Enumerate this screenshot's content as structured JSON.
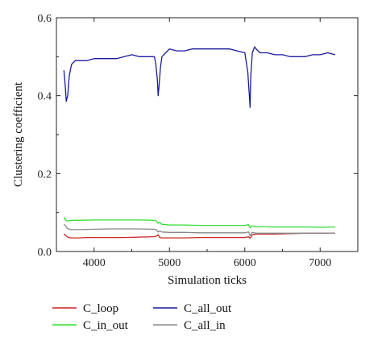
{
  "chart_data": {
    "type": "line",
    "title": "",
    "xlabel": "Simulation ticks",
    "ylabel": "Clustering coefficient",
    "xlim": [
      3500,
      7500
    ],
    "ylim": [
      0,
      0.6
    ],
    "x_ticks": [
      4000,
      5000,
      6000,
      7000
    ],
    "y_ticks": [
      0,
      0.2,
      0.4,
      0.6
    ],
    "x_tick_labels": [
      "4000",
      "5000",
      "6000",
      "7000"
    ],
    "y_tick_labels": [
      "0.0",
      "0.2",
      "0.4",
      "0.6"
    ],
    "grid": false,
    "legend_position": "bottom",
    "series": [
      {
        "name": "C_loop",
        "color": "#cc2222",
        "x": [
          3600,
          3620,
          3640,
          3660,
          3700,
          3800,
          3900,
          4000,
          4200,
          4400,
          4600,
          4800,
          4830,
          4850,
          4870,
          4900,
          5000,
          5200,
          5400,
          5600,
          5800,
          6000,
          6050,
          6070,
          6100,
          6150,
          6200,
          6400,
          6600,
          6800,
          7000,
          7200
        ],
        "y": [
          0.045,
          0.042,
          0.038,
          0.036,
          0.035,
          0.035,
          0.036,
          0.036,
          0.036,
          0.036,
          0.037,
          0.038,
          0.04,
          0.043,
          0.036,
          0.035,
          0.035,
          0.035,
          0.036,
          0.036,
          0.036,
          0.036,
          0.038,
          0.034,
          0.043,
          0.045,
          0.045,
          0.045,
          0.046,
          0.047,
          0.047,
          0.047
        ]
      },
      {
        "name": "C_in_out",
        "color": "#33dd33",
        "x": [
          3600,
          3620,
          3640,
          3660,
          3700,
          3800,
          4000,
          4200,
          4400,
          4600,
          4800,
          4830,
          4850,
          4870,
          4900,
          5000,
          5200,
          5400,
          5600,
          5800,
          6000,
          6050,
          6070,
          6100,
          6150,
          6200,
          6400,
          6600,
          6800,
          7000,
          7200
        ],
        "y": [
          0.088,
          0.082,
          0.078,
          0.079,
          0.08,
          0.08,
          0.081,
          0.081,
          0.081,
          0.081,
          0.08,
          0.078,
          0.072,
          0.075,
          0.07,
          0.068,
          0.068,
          0.067,
          0.067,
          0.067,
          0.067,
          0.069,
          0.061,
          0.066,
          0.063,
          0.064,
          0.063,
          0.063,
          0.063,
          0.062,
          0.063
        ]
      },
      {
        "name": "C_all_out",
        "color": "#1a1a9e",
        "x": [
          3600,
          3615,
          3630,
          3650,
          3670,
          3700,
          3750,
          3800,
          3900,
          4000,
          4100,
          4200,
          4300,
          4400,
          4500,
          4600,
          4700,
          4800,
          4820,
          4840,
          4850,
          4860,
          4880,
          4900,
          4950,
          5000,
          5100,
          5200,
          5300,
          5400,
          5500,
          5600,
          5700,
          5800,
          5900,
          6000,
          6040,
          6060,
          6070,
          6080,
          6100,
          6130,
          6150,
          6200,
          6300,
          6400,
          6500,
          6600,
          6700,
          6800,
          6900,
          7000,
          7100,
          7200
        ],
        "y": [
          0.465,
          0.43,
          0.385,
          0.4,
          0.45,
          0.48,
          0.49,
          0.49,
          0.49,
          0.495,
          0.495,
          0.495,
          0.495,
          0.5,
          0.505,
          0.5,
          0.5,
          0.5,
          0.48,
          0.44,
          0.4,
          0.42,
          0.47,
          0.5,
          0.51,
          0.52,
          0.515,
          0.515,
          0.52,
          0.52,
          0.52,
          0.52,
          0.52,
          0.52,
          0.515,
          0.51,
          0.46,
          0.4,
          0.37,
          0.45,
          0.51,
          0.525,
          0.52,
          0.51,
          0.51,
          0.505,
          0.505,
          0.5,
          0.5,
          0.5,
          0.505,
          0.505,
          0.51,
          0.505
        ]
      },
      {
        "name": "C_all_in",
        "color": "#888888",
        "x": [
          3600,
          3620,
          3640,
          3660,
          3700,
          3800,
          4000,
          4200,
          4400,
          4600,
          4800,
          4830,
          4850,
          4870,
          4900,
          5000,
          5200,
          5400,
          5600,
          5800,
          6000,
          6050,
          6070,
          6100,
          6150,
          6200,
          6400,
          6600,
          6800,
          7000,
          7200
        ],
        "y": [
          0.07,
          0.066,
          0.06,
          0.058,
          0.056,
          0.056,
          0.057,
          0.058,
          0.058,
          0.058,
          0.057,
          0.055,
          0.05,
          0.053,
          0.05,
          0.049,
          0.049,
          0.048,
          0.048,
          0.048,
          0.048,
          0.05,
          0.041,
          0.049,
          0.047,
          0.047,
          0.047,
          0.047,
          0.047,
          0.047,
          0.047
        ]
      }
    ],
    "legend_layout": [
      [
        "C_loop",
        "C_all_out"
      ],
      [
        "C_in_out",
        "C_all_in"
      ]
    ]
  }
}
